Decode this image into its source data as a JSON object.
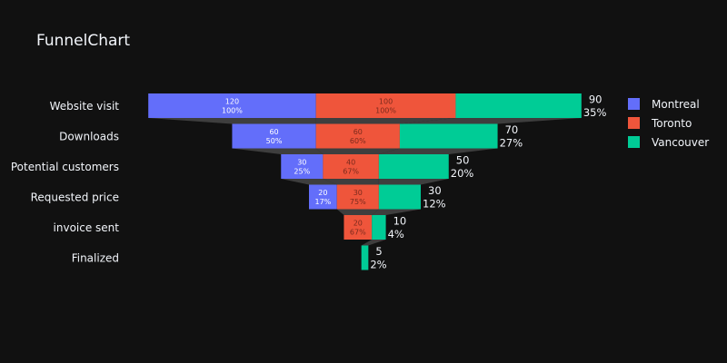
{
  "chart_data": {
    "type": "funnel",
    "title": "FunnelChart",
    "categories": [
      "Website visit",
      "Downloads",
      "Potential customers",
      "Requested price",
      "invoice sent",
      "Finalized"
    ],
    "series": [
      {
        "name": "Montreal",
        "color": "#636efa",
        "values": [
          120,
          60,
          30,
          20,
          null,
          null
        ],
        "percent_labels": [
          "100%",
          "50%",
          "25%",
          "17%",
          null,
          null
        ],
        "label_color": "#ffffff"
      },
      {
        "name": "Toronto",
        "color": "#ef553b",
        "values": [
          100,
          60,
          40,
          30,
          20,
          null
        ],
        "percent_labels": [
          "100%",
          "60%",
          "67%",
          "75%",
          "67%",
          null
        ],
        "label_color": "#7a2a1d"
      },
      {
        "name": "Vancouver",
        "color": "#00cc96",
        "values": [
          90,
          70,
          50,
          30,
          10,
          5
        ],
        "percent_labels": [
          "35%",
          "27%",
          "20%",
          "12%",
          "4%",
          "2%"
        ],
        "label_color": "#f2f5fa"
      }
    ],
    "legend_position": "top-right",
    "background": "#111111",
    "connector_color": "#444444"
  }
}
